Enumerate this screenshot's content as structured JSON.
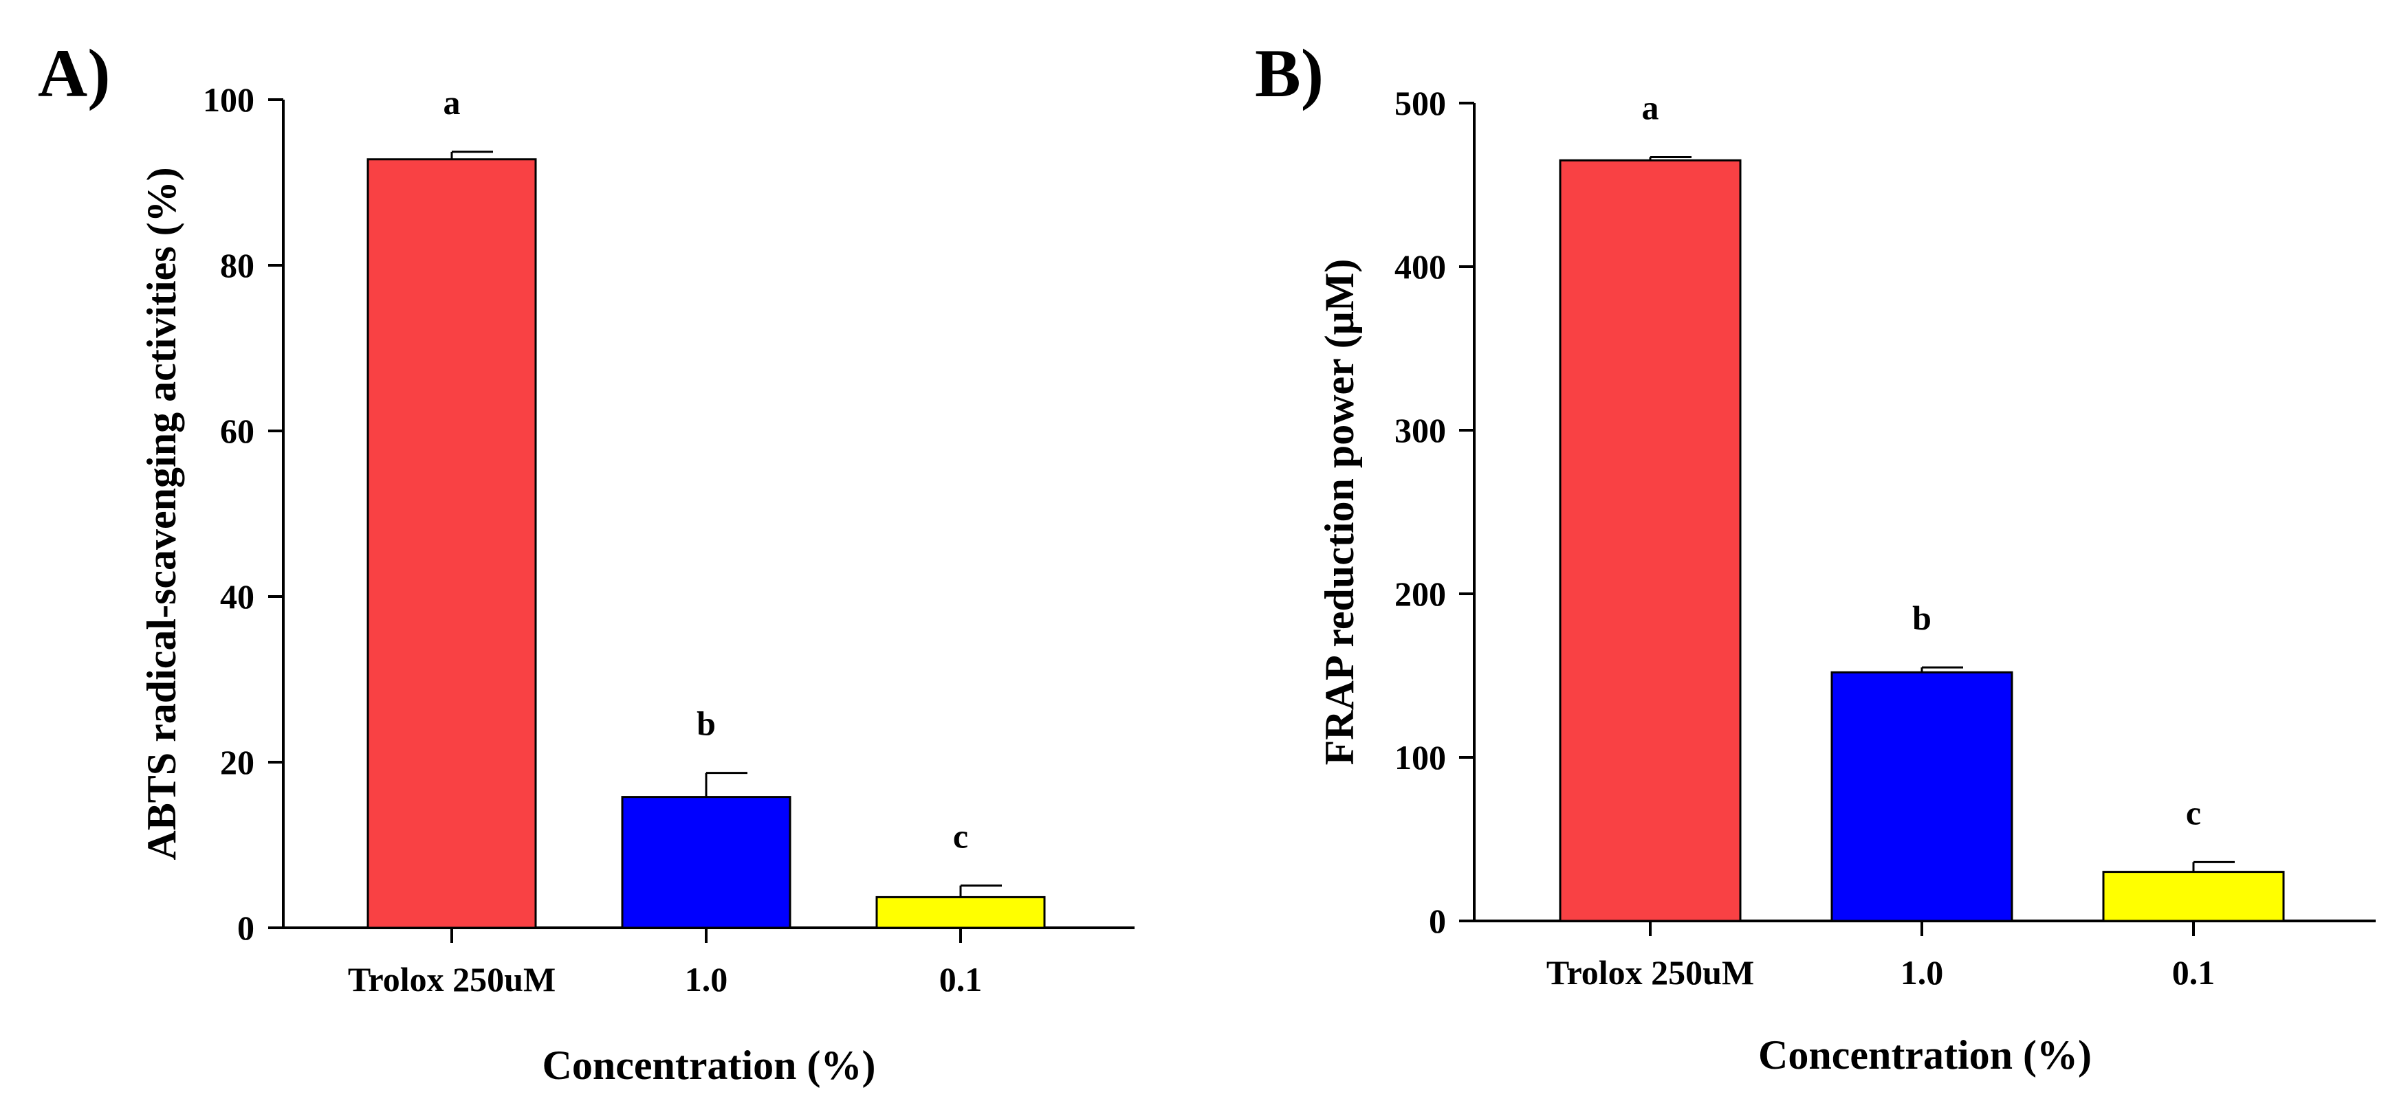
{
  "chart_data": [
    {
      "panel_label": "A)",
      "type": "bar",
      "categories": [
        "Trolox 250uM",
        "1.0",
        "0.1"
      ],
      "values": [
        92.8,
        15.8,
        3.7
      ],
      "errors": [
        0.9,
        2.9,
        1.4
      ],
      "significance": [
        "a",
        "b",
        "c"
      ],
      "colors": [
        "#f94144",
        "#0000ff",
        "#ffff00"
      ],
      "xlabel": "Concentration (%)",
      "ylabel": "ABTS radical-scavenging activities (%)",
      "ylim": [
        0,
        100
      ],
      "yticks": [
        "0",
        "20",
        "40",
        "60",
        "80",
        "100"
      ]
    },
    {
      "panel_label": "B)",
      "type": "bar",
      "categories": [
        "Trolox 250uM",
        "1.0",
        "0.1"
      ],
      "values": [
        465,
        152,
        30
      ],
      "errors": [
        2,
        3,
        6
      ],
      "significance": [
        "a",
        "b",
        "c"
      ],
      "colors": [
        "#f94144",
        "#0000ff",
        "#ffff00"
      ],
      "xlabel": "Concentration (%)",
      "ylabel": "FRAP reduction power (μM)",
      "ylim": [
        0,
        500
      ],
      "yticks": [
        "0",
        "100",
        "200",
        "300",
        "400",
        "500"
      ]
    }
  ]
}
